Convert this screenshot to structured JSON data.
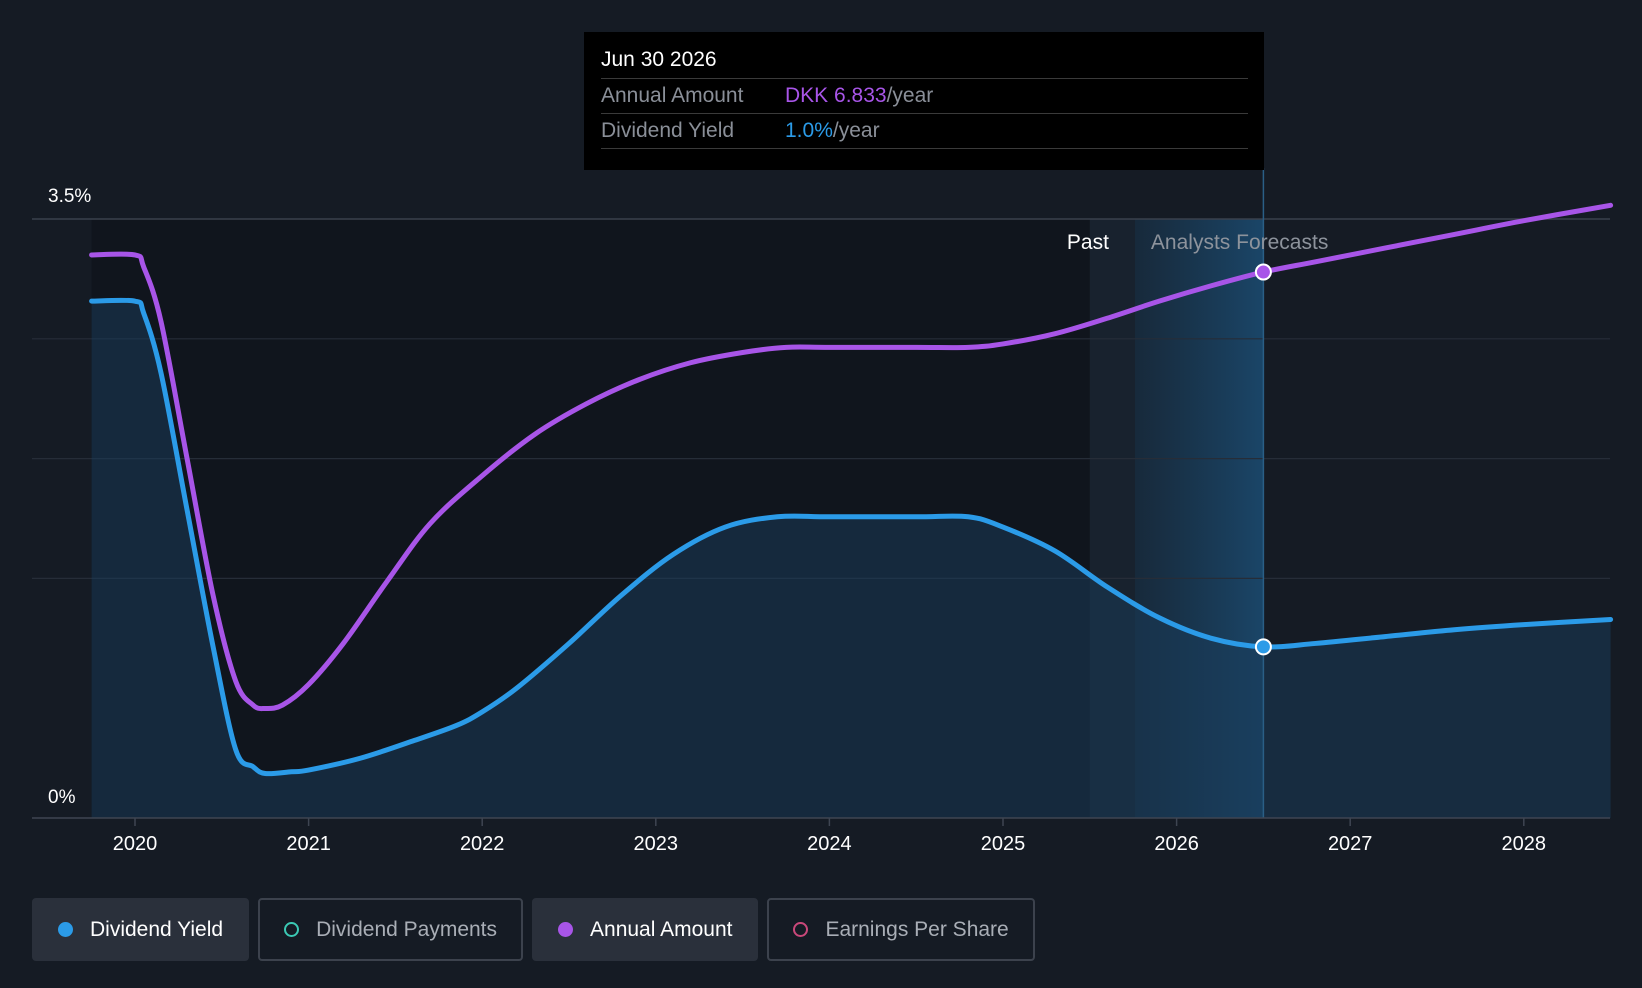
{
  "chart_data": {
    "type": "line",
    "x_range": [
      2019.6,
      2028.5
    ],
    "y_range": [
      0,
      3.5
    ],
    "x_ticks": [
      "2020",
      "2021",
      "2022",
      "2023",
      "2024",
      "2025",
      "2026",
      "2027",
      "2028"
    ],
    "y_tick_labels": {
      "max": "3.5%",
      "min": "0%"
    },
    "region_labels": {
      "past": "Past",
      "forecast": "Analysts Forecasts"
    },
    "past_end": 2025.5,
    "forecast_start": 2025.76,
    "hover_x": 2026.5,
    "series": [
      {
        "name": "Dividend Yield",
        "color": "#2b9be8",
        "points": [
          [
            2019.75,
            3.02
          ],
          [
            2020.0,
            3.02
          ],
          [
            2020.05,
            2.95
          ],
          [
            2020.15,
            2.6
          ],
          [
            2020.3,
            1.8
          ],
          [
            2020.45,
            1.0
          ],
          [
            2020.58,
            0.4
          ],
          [
            2020.68,
            0.3
          ],
          [
            2020.75,
            0.26
          ],
          [
            2020.9,
            0.27
          ],
          [
            2021.0,
            0.28
          ],
          [
            2021.3,
            0.35
          ],
          [
            2021.6,
            0.45
          ],
          [
            2021.85,
            0.54
          ],
          [
            2022.0,
            0.62
          ],
          [
            2022.2,
            0.76
          ],
          [
            2022.5,
            1.02
          ],
          [
            2022.8,
            1.3
          ],
          [
            2023.1,
            1.54
          ],
          [
            2023.4,
            1.7
          ],
          [
            2023.7,
            1.76
          ],
          [
            2024.0,
            1.76
          ],
          [
            2024.5,
            1.76
          ],
          [
            2024.8,
            1.76
          ],
          [
            2025.0,
            1.7
          ],
          [
            2025.3,
            1.56
          ],
          [
            2025.6,
            1.35
          ],
          [
            2025.9,
            1.17
          ],
          [
            2026.2,
            1.05
          ],
          [
            2026.5,
            1.0
          ],
          [
            2026.8,
            1.02
          ],
          [
            2027.2,
            1.06
          ],
          [
            2027.6,
            1.1
          ],
          [
            2028.0,
            1.13
          ],
          [
            2028.5,
            1.16
          ]
        ]
      },
      {
        "name": "Annual Amount",
        "color": "#a855e8",
        "points": [
          [
            2019.75,
            3.29
          ],
          [
            2020.0,
            3.29
          ],
          [
            2020.05,
            3.22
          ],
          [
            2020.15,
            2.9
          ],
          [
            2020.3,
            2.1
          ],
          [
            2020.45,
            1.3
          ],
          [
            2020.58,
            0.8
          ],
          [
            2020.68,
            0.66
          ],
          [
            2020.75,
            0.64
          ],
          [
            2020.85,
            0.66
          ],
          [
            2021.0,
            0.78
          ],
          [
            2021.2,
            1.02
          ],
          [
            2021.45,
            1.38
          ],
          [
            2021.7,
            1.72
          ],
          [
            2022.0,
            2.0
          ],
          [
            2022.3,
            2.24
          ],
          [
            2022.6,
            2.42
          ],
          [
            2022.9,
            2.56
          ],
          [
            2023.2,
            2.66
          ],
          [
            2023.5,
            2.72
          ],
          [
            2023.75,
            2.75
          ],
          [
            2024.0,
            2.75
          ],
          [
            2024.5,
            2.75
          ],
          [
            2024.8,
            2.75
          ],
          [
            2025.0,
            2.77
          ],
          [
            2025.3,
            2.83
          ],
          [
            2025.6,
            2.92
          ],
          [
            2025.9,
            3.02
          ],
          [
            2026.2,
            3.11
          ],
          [
            2026.5,
            3.19
          ],
          [
            2026.8,
            3.25
          ],
          [
            2027.2,
            3.33
          ],
          [
            2027.6,
            3.41
          ],
          [
            2028.0,
            3.49
          ],
          [
            2028.5,
            3.58
          ]
        ]
      }
    ],
    "tooltip": {
      "date": "Jun 30 2026",
      "annual_amount_label": "Annual Amount",
      "annual_amount_value": "DKK 6.833",
      "annual_amount_unit": "/year",
      "dividend_yield_label": "Dividend Yield",
      "dividend_yield_value": "1.0%",
      "dividend_yield_unit": "/year"
    },
    "legend": [
      {
        "label": "Dividend Yield",
        "color": "#2b9be8",
        "active": true
      },
      {
        "label": "Dividend Payments",
        "color": "#3bc9b4",
        "active": false
      },
      {
        "label": "Annual Amount",
        "color": "#a855e8",
        "active": true
      },
      {
        "label": "Earnings Per Share",
        "color": "#c9487a",
        "active": false
      }
    ]
  }
}
